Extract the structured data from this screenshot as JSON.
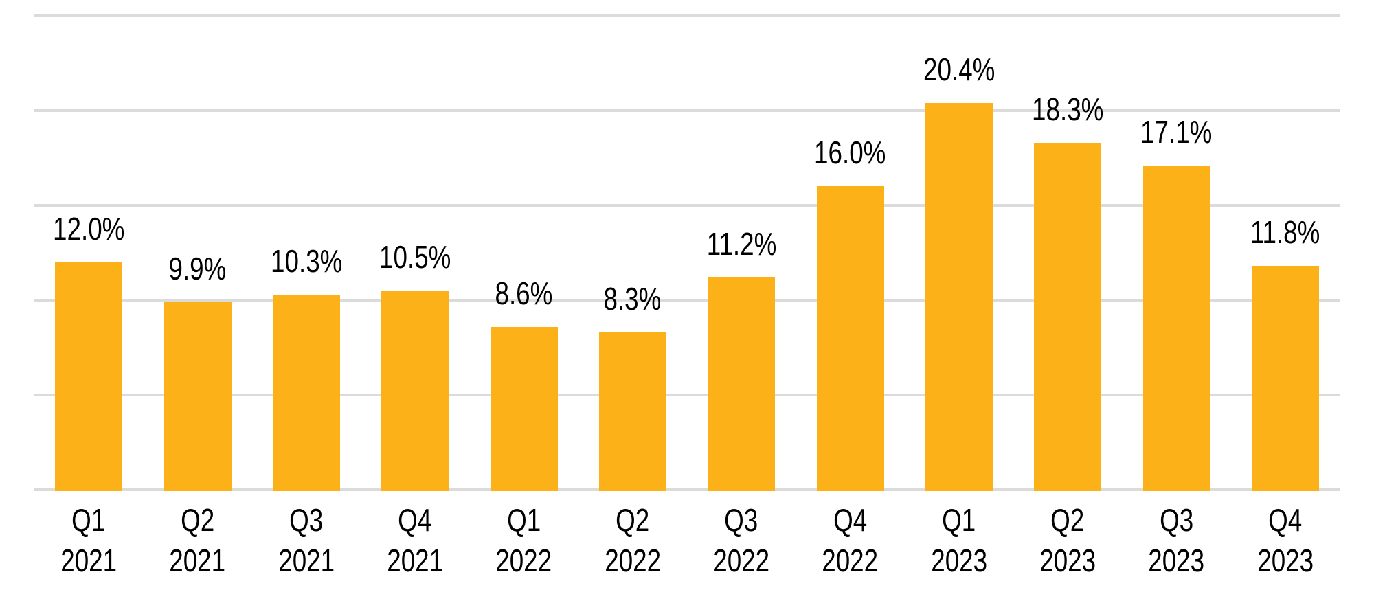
{
  "chart_data": {
    "type": "bar",
    "title": "",
    "xlabel": "",
    "ylabel": "",
    "categories": [
      "Q1 2021",
      "Q2 2021",
      "Q3 2021",
      "Q4 2021",
      "Q1 2022",
      "Q2 2022",
      "Q3 2022",
      "Q4 2022",
      "Q1 2023",
      "Q2 2023",
      "Q3 2023",
      "Q4 2023"
    ],
    "values": [
      12.0,
      9.9,
      10.3,
      10.5,
      8.6,
      8.3,
      11.2,
      16.0,
      20.4,
      18.3,
      17.1,
      11.8
    ],
    "value_labels": [
      "12.0%",
      "9.9%",
      "10.3%",
      "10.5%",
      "8.6%",
      "8.3%",
      "11.2%",
      "16.0%",
      "20.4%",
      "18.3%",
      "17.1%",
      "11.8%"
    ],
    "ylim": [
      0,
      25
    ],
    "grid_step": 5,
    "grid": "horizontal-only",
    "y_axis_tick_labels": "none",
    "legend": "none",
    "value_labels_position": "above-bars",
    "colors": {
      "bar": "#FBB117",
      "gridline": "#DBDBDB",
      "label": "#000000",
      "background": "#FFFFFF"
    }
  }
}
